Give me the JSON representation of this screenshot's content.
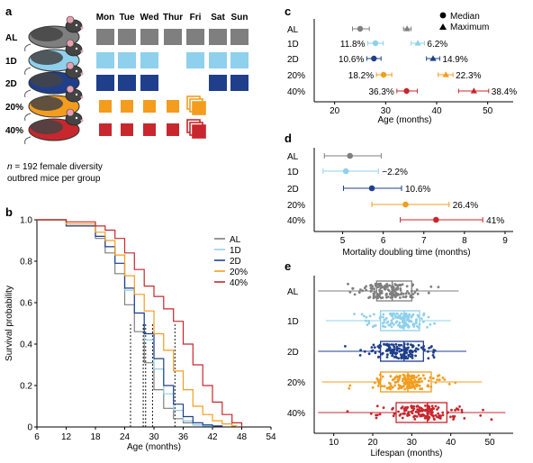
{
  "colors": {
    "AL": "#7f7f7f",
    "1D": "#8fd0ec",
    "2D": "#1f3f8c",
    "20%": "#f39c1e",
    "40%": "#c8272d"
  },
  "panel_a": {
    "letter": "a",
    "days": [
      "Mon",
      "Tue",
      "Wed",
      "Thur",
      "Fri",
      "Sat",
      "Sun"
    ],
    "groups": [
      {
        "label": "AL",
        "pattern": [
          1,
          1,
          1,
          1,
          1,
          1,
          1
        ]
      },
      {
        "label": "1D",
        "pattern": [
          1,
          1,
          1,
          0,
          1,
          1,
          1
        ]
      },
      {
        "label": "2D",
        "pattern": [
          1,
          1,
          1,
          0,
          0,
          1,
          1
        ]
      },
      {
        "label": "20%",
        "pattern": [
          2,
          2,
          2,
          2,
          3,
          0,
          0
        ]
      },
      {
        "label": "40%",
        "pattern": [
          2,
          2,
          2,
          2,
          3,
          0,
          0
        ]
      }
    ],
    "note_italic": "n",
    "note_line1": " = 192 female diversity",
    "note_line2": "outbred mice per group"
  },
  "chart_data": [
    {
      "panel": "b",
      "type": "line",
      "xlabel": "Age (months)",
      "ylabel": "Survival probability",
      "xlim": [
        6,
        54
      ],
      "ylim": [
        0,
        1.0
      ],
      "xticks": [
        6,
        12,
        18,
        24,
        30,
        36,
        42,
        48,
        54
      ],
      "yticks": [
        0,
        0.2,
        0.4,
        0.6,
        0.8,
        1.0
      ],
      "median_lines": [
        25.2,
        27.8,
        28.3,
        29.7,
        34.3
      ],
      "series": [
        {
          "name": "AL",
          "x": [
            6,
            12,
            18,
            20,
            22,
            24,
            26,
            28,
            30,
            32,
            34,
            36,
            38,
            40,
            42
          ],
          "y": [
            1.0,
            0.97,
            0.91,
            0.84,
            0.74,
            0.59,
            0.46,
            0.31,
            0.18,
            0.09,
            0.04,
            0.02,
            0.01,
            0.005,
            0
          ]
        },
        {
          "name": "1D",
          "x": [
            6,
            12,
            18,
            20,
            22,
            24,
            26,
            28,
            30,
            32,
            34,
            36,
            38,
            40,
            42
          ],
          "y": [
            1.0,
            0.97,
            0.92,
            0.87,
            0.79,
            0.66,
            0.55,
            0.42,
            0.28,
            0.16,
            0.08,
            0.03,
            0.01,
            0.005,
            0
          ]
        },
        {
          "name": "2D",
          "x": [
            6,
            12,
            18,
            20,
            22,
            24,
            26,
            28,
            30,
            32,
            34,
            36,
            38,
            40,
            42,
            44
          ],
          "y": [
            1.0,
            0.97,
            0.92,
            0.87,
            0.79,
            0.67,
            0.55,
            0.45,
            0.33,
            0.2,
            0.11,
            0.05,
            0.02,
            0.01,
            0.005,
            0
          ]
        },
        {
          "name": "20%",
          "x": [
            6,
            12,
            18,
            20,
            22,
            24,
            26,
            28,
            30,
            32,
            34,
            36,
            38,
            40,
            42,
            44,
            46,
            47
          ],
          "y": [
            1.0,
            0.98,
            0.94,
            0.9,
            0.83,
            0.73,
            0.64,
            0.56,
            0.45,
            0.37,
            0.27,
            0.18,
            0.1,
            0.06,
            0.03,
            0.015,
            0.005,
            0
          ]
        },
        {
          "name": "40%",
          "x": [
            6,
            12,
            18,
            20,
            22,
            24,
            26,
            28,
            30,
            32,
            34,
            36,
            38,
            40,
            42,
            44,
            46,
            48
          ],
          "y": [
            1.0,
            0.99,
            0.97,
            0.95,
            0.91,
            0.84,
            0.76,
            0.68,
            0.63,
            0.57,
            0.51,
            0.4,
            0.3,
            0.2,
            0.12,
            0.06,
            0.02,
            0
          ]
        }
      ],
      "legend": [
        "AL",
        "1D",
        "2D",
        "20%",
        "40%"
      ]
    },
    {
      "panel": "c",
      "type": "scatter",
      "xlabel": "Age (months)",
      "xlim": [
        16,
        55
      ],
      "xticks": [
        20,
        30,
        40,
        50
      ],
      "legend": [
        {
          "marker": "circle",
          "label": "Median"
        },
        {
          "marker": "triangle",
          "label": "Maximum"
        }
      ],
      "rows": [
        {
          "name": "AL",
          "median": 25.0,
          "median_err": [
            23.5,
            26.8
          ],
          "max": 34.2,
          "max_err": [
            33.5,
            35.0
          ],
          "median_label": "",
          "max_label": ""
        },
        {
          "name": "1D",
          "median": 28.0,
          "median_err": [
            26.5,
            29.5
          ],
          "max": 36.3,
          "max_err": [
            35.0,
            37.6
          ],
          "median_label": "11.8%",
          "max_label": "6.2%"
        },
        {
          "name": "2D",
          "median": 27.7,
          "median_err": [
            26.3,
            29.1
          ],
          "max": 39.3,
          "max_err": [
            38.0,
            40.6
          ],
          "median_label": "10.6%",
          "max_label": "14.9%"
        },
        {
          "name": "20%",
          "median": 29.6,
          "median_err": [
            28.2,
            31.2
          ],
          "max": 41.8,
          "max_err": [
            40.3,
            43.2
          ],
          "median_label": "18.2%",
          "max_label": "22.3%"
        },
        {
          "name": "40%",
          "median": 34.1,
          "median_err": [
            32.2,
            36.2
          ],
          "max": 47.3,
          "max_err": [
            44.3,
            50.2
          ],
          "median_label": "36.3%",
          "max_label": "38.4%"
        }
      ]
    },
    {
      "panel": "d",
      "type": "scatter",
      "xlabel": "Mortality doubling time (months)",
      "xlim": [
        4.3,
        9.2
      ],
      "xticks": [
        5,
        6,
        7,
        8,
        9
      ],
      "rows": [
        {
          "name": "AL",
          "value": 5.18,
          "err": [
            4.55,
            5.95
          ],
          "label": ""
        },
        {
          "name": "1D",
          "value": 5.08,
          "err": [
            4.52,
            5.88
          ],
          "label": "−2.2%"
        },
        {
          "name": "2D",
          "value": 5.72,
          "err": [
            5.02,
            6.45
          ],
          "label": "10.6%"
        },
        {
          "name": "20%",
          "value": 6.55,
          "err": [
            5.72,
            7.62
          ],
          "label": "26.4%"
        },
        {
          "name": "40%",
          "value": 7.3,
          "err": [
            6.42,
            8.45
          ],
          "label": "41%"
        }
      ]
    },
    {
      "panel": "e",
      "type": "box",
      "xlabel": "Lifespan (months)",
      "xlim": [
        5,
        56
      ],
      "xticks": [
        10,
        20,
        30,
        40,
        50
      ],
      "rows": [
        {
          "name": "AL",
          "min": 6,
          "q1": 21,
          "median": 25,
          "q3": 30,
          "max": 42
        },
        {
          "name": "1D",
          "min": 8,
          "q1": 22,
          "median": 28,
          "q3": 32,
          "max": 40
        },
        {
          "name": "2D",
          "min": 6,
          "q1": 22,
          "median": 28,
          "q3": 33,
          "max": 44
        },
        {
          "name": "20%",
          "min": 7,
          "q1": 22,
          "median": 29,
          "q3": 35,
          "max": 48
        },
        {
          "name": "40%",
          "min": 6,
          "q1": 26,
          "median": 34,
          "q3": 39,
          "max": 54
        }
      ]
    }
  ]
}
